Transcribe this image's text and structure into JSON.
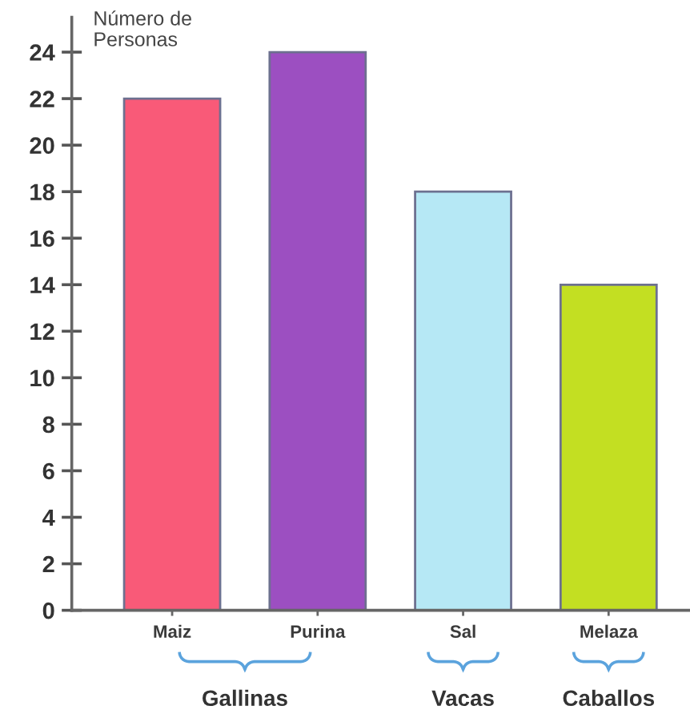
{
  "chart_data": {
    "type": "bar",
    "ylabel": "Número de\nPersonas",
    "categories": [
      "Maiz",
      "Purina",
      "Sal",
      "Melaza"
    ],
    "values": [
      22,
      24,
      18,
      14
    ],
    "colors": [
      "#f95a78",
      "#9c4fc1",
      "#b6e8f5",
      "#c3df22"
    ],
    "ylim": [
      0,
      25.5
    ],
    "yticks": [
      0,
      2,
      4,
      6,
      8,
      10,
      12,
      14,
      16,
      18,
      20,
      22,
      24
    ],
    "annotations": [
      "Gallinas",
      "Vacas",
      "Caballos"
    ]
  }
}
